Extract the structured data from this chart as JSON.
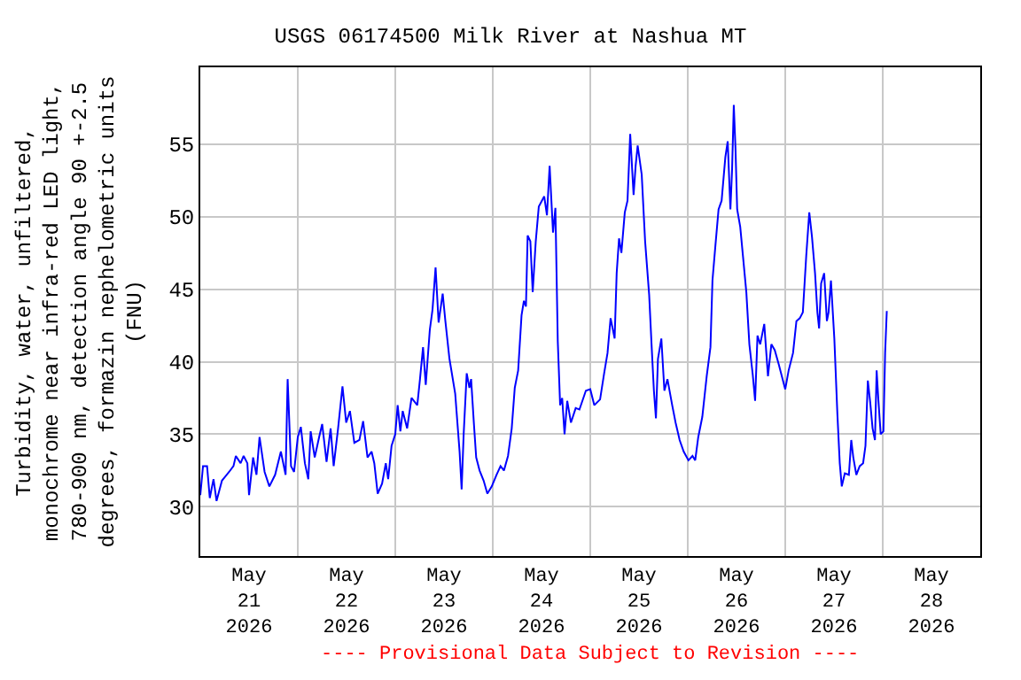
{
  "chart_data": {
    "type": "line",
    "title": "USGS 06174500 Milk River at Nashua MT",
    "ylabel": "Turbidity, water, unfiltered,\nmonochrome near infra-red LED light,\n780-900 nm, detection angle 90 +-2.5\ndegrees, formazin nephelometric units\n(FNU)",
    "annotations": [
      "---- Provisional Data Subject to Revision ----"
    ],
    "x": [
      "2026-05-21T00:00",
      "2026-05-21T00:40",
      "2026-05-21T01:40",
      "2026-05-21T02:20",
      "2026-05-21T03:15",
      "2026-05-21T04:00",
      "2026-05-21T05:20",
      "2026-05-21T07:05",
      "2026-05-21T08:10",
      "2026-05-21T08:45",
      "2026-05-21T09:55",
      "2026-05-21T10:40",
      "2026-05-21T11:35",
      "2026-05-21T12:00",
      "2026-05-21T13:00",
      "2026-05-21T13:50",
      "2026-05-21T14:35",
      "2026-05-21T15:50",
      "2026-05-21T17:00",
      "2026-05-21T18:25",
      "2026-05-21T19:50",
      "2026-05-21T21:00",
      "2026-05-21T21:30",
      "2026-05-21T22:20",
      "2026-05-21T23:05",
      "2026-05-22T00:00",
      "2026-05-22T00:45",
      "2026-05-22T01:45",
      "2026-05-22T02:35",
      "2026-05-22T03:10",
      "2026-05-22T04:10",
      "2026-05-22T05:15",
      "2026-05-22T06:00",
      "2026-05-22T07:05",
      "2026-05-22T08:05",
      "2026-05-22T08:50",
      "2026-05-22T09:55",
      "2026-05-22T11:00",
      "2026-05-22T11:55",
      "2026-05-22T12:50",
      "2026-05-22T13:55",
      "2026-05-22T15:10",
      "2026-05-22T16:05",
      "2026-05-22T17:10",
      "2026-05-22T18:10",
      "2026-05-22T18:50",
      "2026-05-22T19:40",
      "2026-05-22T20:45",
      "2026-05-22T21:40",
      "2026-05-22T22:15",
      "2026-05-22T23:05",
      "2026-05-23T00:00",
      "2026-05-23T00:35",
      "2026-05-23T01:15",
      "2026-05-23T01:50",
      "2026-05-23T02:55",
      "2026-05-23T04:00",
      "2026-05-23T05:25",
      "2026-05-23T06:05",
      "2026-05-23T06:50",
      "2026-05-23T07:30",
      "2026-05-23T08:30",
      "2026-05-23T09:10",
      "2026-05-23T09:55",
      "2026-05-23T10:40",
      "2026-05-23T11:40",
      "2026-05-23T12:20",
      "2026-05-23T13:20",
      "2026-05-23T14:45",
      "2026-05-23T15:50",
      "2026-05-23T16:20",
      "2026-05-23T16:50",
      "2026-05-23T17:35",
      "2026-05-23T18:15",
      "2026-05-23T18:40",
      "2026-05-23T19:20",
      "2026-05-23T19:55",
      "2026-05-23T20:45",
      "2026-05-23T21:45",
      "2026-05-23T22:40",
      "2026-05-23T23:45",
      "2026-05-24T00:55",
      "2026-05-24T01:55",
      "2026-05-24T02:45",
      "2026-05-24T03:45",
      "2026-05-24T04:40",
      "2026-05-24T05:25",
      "2026-05-24T06:15",
      "2026-05-24T07:05",
      "2026-05-24T07:40",
      "2026-05-24T08:10",
      "2026-05-24T08:35",
      "2026-05-24T09:15",
      "2026-05-24T09:50",
      "2026-05-24T10:35",
      "2026-05-24T11:20",
      "2026-05-24T12:40",
      "2026-05-24T13:20",
      "2026-05-24T14:00",
      "2026-05-24T14:50",
      "2026-05-24T15:25",
      "2026-05-24T16:00",
      "2026-05-24T16:35",
      "2026-05-24T17:05",
      "2026-05-24T17:40",
      "2026-05-24T18:20",
      "2026-05-24T19:15",
      "2026-05-24T20:25",
      "2026-05-24T21:20",
      "2026-05-24T22:55",
      "2026-05-25T00:00",
      "2026-05-25T01:00",
      "2026-05-25T02:25",
      "2026-05-25T03:25",
      "2026-05-25T04:15",
      "2026-05-25T05:00",
      "2026-05-25T06:00",
      "2026-05-25T06:30",
      "2026-05-25T07:05",
      "2026-05-25T07:40",
      "2026-05-25T08:30",
      "2026-05-25T09:10",
      "2026-05-25T09:50",
      "2026-05-25T10:40",
      "2026-05-25T11:10",
      "2026-05-25T11:40",
      "2026-05-25T12:40",
      "2026-05-25T13:30",
      "2026-05-25T14:30",
      "2026-05-25T15:05",
      "2026-05-25T15:40",
      "2026-05-25T16:10",
      "2026-05-25T16:40",
      "2026-05-25T17:30",
      "2026-05-25T18:15",
      "2026-05-25T19:00",
      "2026-05-25T20:10",
      "2026-05-25T21:00",
      "2026-05-25T22:00",
      "2026-05-25T23:00",
      "2026-05-26T00:10",
      "2026-05-26T01:10",
      "2026-05-26T01:50",
      "2026-05-26T02:35",
      "2026-05-26T03:35",
      "2026-05-26T04:40",
      "2026-05-26T05:35",
      "2026-05-26T06:05",
      "2026-05-26T06:50",
      "2026-05-26T07:35",
      "2026-05-26T08:20",
      "2026-05-26T09:15",
      "2026-05-26T09:50",
      "2026-05-26T10:30",
      "2026-05-26T10:55",
      "2026-05-26T11:20",
      "2026-05-26T11:45",
      "2026-05-26T12:10",
      "2026-05-26T12:55",
      "2026-05-26T13:35",
      "2026-05-26T14:25",
      "2026-05-26T15:10",
      "2026-05-26T16:00",
      "2026-05-26T16:35",
      "2026-05-26T17:10",
      "2026-05-26T17:50",
      "2026-05-26T18:50",
      "2026-05-26T19:45",
      "2026-05-26T20:35",
      "2026-05-26T21:25",
      "2026-05-26T22:25",
      "2026-05-27T00:00",
      "2026-05-27T00:50",
      "2026-05-27T01:55",
      "2026-05-27T02:45",
      "2026-05-27T03:35",
      "2026-05-27T04:20",
      "2026-05-27T05:10",
      "2026-05-27T05:55",
      "2026-05-27T06:35",
      "2026-05-27T07:20",
      "2026-05-27T07:55",
      "2026-05-27T08:20",
      "2026-05-27T08:50",
      "2026-05-27T09:35",
      "2026-05-27T10:15",
      "2026-05-27T10:40",
      "2026-05-27T11:15",
      "2026-05-27T12:05",
      "2026-05-27T12:50",
      "2026-05-27T13:25",
      "2026-05-27T13:55",
      "2026-05-27T14:40",
      "2026-05-27T15:40",
      "2026-05-27T16:15",
      "2026-05-27T16:45",
      "2026-05-27T17:30",
      "2026-05-27T18:20",
      "2026-05-27T19:10",
      "2026-05-27T19:45",
      "2026-05-27T20:20",
      "2026-05-27T20:55",
      "2026-05-27T21:30",
      "2026-05-27T22:05",
      "2026-05-27T22:30",
      "2026-05-27T22:55",
      "2026-05-27T23:30",
      "2026-05-28T00:10",
      "2026-05-28T00:35",
      "2026-05-28T01:00"
    ],
    "series": [
      {
        "color": "#0000ff",
        "values": [
          30.8,
          32.8,
          32.8,
          30.6,
          31.9,
          30.4,
          31.8,
          32.4,
          32.8,
          33.5,
          33.0,
          33.5,
          33.0,
          30.8,
          33.4,
          32.2,
          34.8,
          32.4,
          31.4,
          32.2,
          33.8,
          32.2,
          38.8,
          32.8,
          32.4,
          34.8,
          35.5,
          33.0,
          31.9,
          35.2,
          33.4,
          34.8,
          35.7,
          33.1,
          35.4,
          32.8,
          35.4,
          38.3,
          35.8,
          36.6,
          34.4,
          34.6,
          35.9,
          33.4,
          33.8,
          33.0,
          30.9,
          31.6,
          33.0,
          31.9,
          34.2,
          35.0,
          37.0,
          35.2,
          36.6,
          35.4,
          37.5,
          37.0,
          38.8,
          41.0,
          38.4,
          42.2,
          43.6,
          46.5,
          42.7,
          44.7,
          42.8,
          40.2,
          37.8,
          33.8,
          31.2,
          35.0,
          39.2,
          38.2,
          38.8,
          35.8,
          33.4,
          32.5,
          31.8,
          30.9,
          31.4,
          32.2,
          32.8,
          32.5,
          33.5,
          35.4,
          38.2,
          39.4,
          43.2,
          44.2,
          43.8,
          48.7,
          48.3,
          44.8,
          48.3,
          50.7,
          51.4,
          50.1,
          53.5,
          48.9,
          50.6,
          41.4,
          37.0,
          37.5,
          35.0,
          37.3,
          35.8,
          36.8,
          36.7,
          38.0,
          38.1,
          37.0,
          37.4,
          39.2,
          40.6,
          43.0,
          41.6,
          46.1,
          48.5,
          47.5,
          50.3,
          51.1,
          55.7,
          51.5,
          53.5,
          54.9,
          52.9,
          48.3,
          44.6,
          41.2,
          38.0,
          36.1,
          40.2,
          41.6,
          38.0,
          38.8,
          37.0,
          35.8,
          34.6,
          33.8,
          33.2,
          33.5,
          33.2,
          34.8,
          36.2,
          39.0,
          41.0,
          45.6,
          48.1,
          50.5,
          51.1,
          54.1,
          55.2,
          50.5,
          53.3,
          57.7,
          54.7,
          50.5,
          49.3,
          47.3,
          44.8,
          41.2,
          39.1,
          37.3,
          41.8,
          41.2,
          42.6,
          39.0,
          41.2,
          40.8,
          39.8,
          38.1,
          39.4,
          40.6,
          42.8,
          43.0,
          43.4,
          47.3,
          50.3,
          48.6,
          46.1,
          43.4,
          42.3,
          45.4,
          46.1,
          42.8,
          43.4,
          45.6,
          41.6,
          36.4,
          33.0,
          31.4,
          32.3,
          32.2,
          34.6,
          33.4,
          32.2,
          32.8,
          33.0,
          34.2,
          38.7,
          37.2,
          35.4,
          34.6,
          39.4,
          37.4,
          35.0,
          35.2,
          40.6,
          43.5
        ]
      }
    ],
    "xlim": [
      "2026-05-21",
      "2026-05-29"
    ],
    "xticks": [
      {
        "value": "2026-05-21T12:00",
        "label": "May\n21\n2026"
      },
      {
        "value": "2026-05-22T12:00",
        "label": "May\n22\n2026"
      },
      {
        "value": "2026-05-23T12:00",
        "label": "May\n23\n2026"
      },
      {
        "value": "2026-05-24T12:00",
        "label": "May\n24\n2026"
      },
      {
        "value": "2026-05-25T12:00",
        "label": "May\n25\n2026"
      },
      {
        "value": "2026-05-26T12:00",
        "label": "May\n26\n2026"
      },
      {
        "value": "2026-05-27T12:00",
        "label": "May\n27\n2026"
      },
      {
        "value": "2026-05-28T12:00",
        "label": "May\n28\n2026"
      },
      {
        "value": "2026-05-22",
        "label": null
      },
      {
        "value": "2026-05-23",
        "label": null
      },
      {
        "value": "2026-05-24",
        "label": null
      },
      {
        "value": "2026-05-25",
        "label": null
      },
      {
        "value": "2026-05-26",
        "label": null
      },
      {
        "value": "2026-05-27",
        "label": null
      },
      {
        "value": "2026-05-28",
        "label": null
      }
    ],
    "ylim": [
      26.6,
      60.3
    ],
    "yticks": [
      30,
      35,
      40,
      45,
      50,
      55
    ],
    "grid": true,
    "marker": "none",
    "line_style": "solid"
  }
}
